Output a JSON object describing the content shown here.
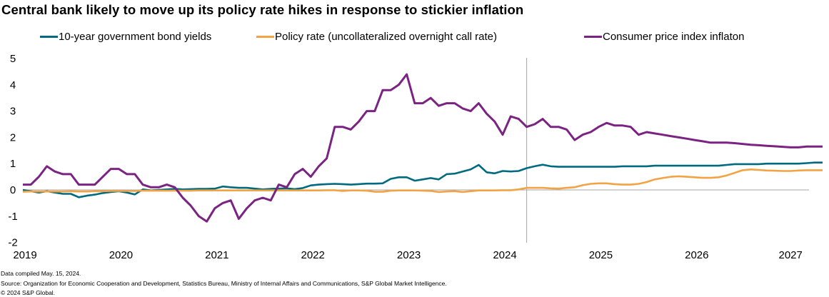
{
  "chart_data": {
    "type": "line",
    "title": "Central bank likely to move up its policy rate hikes in response to stickier inflation",
    "xlabel": "",
    "ylabel": "",
    "ylim": [
      -2,
      5
    ],
    "yticks": [
      "5",
      "4",
      "3",
      "2",
      "1",
      "0",
      "-1",
      "-2"
    ],
    "ytick_values": [
      5,
      4,
      3,
      2,
      1,
      0,
      -1,
      -2
    ],
    "xlim": [
      2019.0,
      2027.2
    ],
    "xticks": [
      "2019",
      "2020",
      "2021",
      "2022",
      "2023",
      "2024",
      "2025",
      "2026",
      "2027"
    ],
    "xtick_values": [
      2019,
      2020,
      2021,
      2022,
      2023,
      2024,
      2025,
      2026,
      2027
    ],
    "grid": false,
    "zero_line": true,
    "forecast_divider_x": 2024.25,
    "legend_position": "top",
    "x_start": 2019.0,
    "x_step_months": 1,
    "series": [
      {
        "name": "10-year government bond yields",
        "color": "#006a80",
        "values": [
          0.0,
          -0.05,
          -0.1,
          -0.05,
          -0.1,
          -0.15,
          -0.15,
          -0.28,
          -0.22,
          -0.18,
          -0.12,
          -0.08,
          -0.05,
          -0.1,
          -0.17,
          0.02,
          -0.02,
          0.0,
          0.02,
          0.04,
          0.02,
          0.03,
          0.04,
          0.04,
          0.05,
          0.13,
          0.1,
          0.08,
          0.08,
          0.05,
          0.02,
          0.04,
          0.05,
          0.06,
          0.03,
          0.07,
          0.17,
          0.2,
          0.22,
          0.23,
          0.22,
          0.2,
          0.22,
          0.24,
          0.24,
          0.25,
          0.42,
          0.48,
          0.48,
          0.35,
          0.4,
          0.45,
          0.4,
          0.6,
          0.62,
          0.7,
          0.78,
          0.95,
          0.67,
          0.63,
          0.72,
          0.7,
          0.72,
          0.83,
          0.9,
          0.96,
          0.9,
          0.88,
          0.88,
          0.88,
          0.88,
          0.88,
          0.88,
          0.88,
          0.88,
          0.9,
          0.9,
          0.9,
          0.9,
          0.92,
          0.92,
          0.92,
          0.92,
          0.92,
          0.92,
          0.92,
          0.92,
          0.92,
          0.95,
          0.98,
          0.98,
          0.98,
          0.98,
          1.0,
          1.0,
          1.0,
          1.0,
          1.0,
          1.02,
          1.04,
          1.04
        ]
      },
      {
        "name": "Policy rate (uncollateralized overnight call rate)",
        "color": "#f2a444",
        "values": [
          -0.07,
          -0.06,
          -0.06,
          -0.06,
          -0.06,
          -0.06,
          -0.05,
          -0.06,
          -0.06,
          -0.05,
          -0.05,
          -0.04,
          -0.04,
          -0.04,
          -0.04,
          -0.03,
          -0.03,
          -0.03,
          -0.03,
          -0.03,
          -0.03,
          -0.03,
          -0.02,
          -0.02,
          -0.02,
          -0.02,
          -0.02,
          -0.02,
          -0.02,
          -0.02,
          -0.02,
          -0.02,
          -0.02,
          -0.02,
          -0.02,
          -0.02,
          -0.02,
          -0.02,
          -0.01,
          -0.01,
          -0.04,
          -0.02,
          -0.02,
          -0.03,
          -0.07,
          -0.07,
          -0.03,
          -0.02,
          -0.02,
          -0.02,
          -0.03,
          -0.04,
          -0.08,
          -0.06,
          -0.05,
          -0.08,
          -0.05,
          -0.02,
          -0.02,
          -0.02,
          -0.01,
          -0.01,
          0.02,
          0.08,
          0.08,
          0.08,
          0.06,
          0.05,
          0.08,
          0.1,
          0.18,
          0.23,
          0.25,
          0.25,
          0.22,
          0.2,
          0.2,
          0.23,
          0.3,
          0.4,
          0.45,
          0.5,
          0.52,
          0.5,
          0.48,
          0.46,
          0.46,
          0.48,
          0.55,
          0.65,
          0.75,
          0.78,
          0.76,
          0.74,
          0.73,
          0.72,
          0.72,
          0.74,
          0.75,
          0.75,
          0.75
        ]
      },
      {
        "name": "Consumer price index inflaton",
        "color": "#7b2382",
        "values": [
          0.2,
          0.2,
          0.5,
          0.9,
          0.7,
          0.6,
          0.6,
          0.2,
          0.2,
          0.2,
          0.5,
          0.8,
          0.8,
          0.6,
          0.6,
          0.2,
          0.1,
          0.1,
          0.2,
          0.1,
          -0.3,
          -0.6,
          -1.0,
          -1.2,
          -0.7,
          -0.5,
          -0.4,
          -1.1,
          -0.7,
          -0.4,
          -0.3,
          -0.4,
          0.2,
          0.1,
          0.6,
          0.8,
          0.5,
          0.9,
          1.2,
          2.4,
          2.4,
          2.3,
          2.6,
          3.0,
          3.0,
          3.8,
          3.8,
          4.0,
          4.4,
          3.3,
          3.3,
          3.5,
          3.2,
          3.3,
          3.3,
          3.1,
          3.0,
          3.3,
          2.9,
          2.6,
          2.1,
          2.8,
          2.7,
          2.4,
          2.5,
          2.7,
          2.4,
          2.4,
          2.3,
          1.9,
          2.1,
          2.2,
          2.4,
          2.55,
          2.45,
          2.45,
          2.4,
          2.1,
          2.2,
          2.15,
          2.1,
          2.05,
          2.0,
          1.95,
          1.9,
          1.85,
          1.8,
          1.8,
          1.8,
          1.78,
          1.75,
          1.72,
          1.7,
          1.68,
          1.66,
          1.64,
          1.62,
          1.62,
          1.65,
          1.65,
          1.65
        ]
      }
    ]
  },
  "footer": {
    "compiled": "Data compiled May. 15, 2024.",
    "source": "Source: Organization  for Economic Cooperation  and Development, Statistics Bureau, Ministry of Internal Affairs and Communications, S&P Global Market Intelligence.",
    "copyright": "© 2024 S&P Global."
  }
}
